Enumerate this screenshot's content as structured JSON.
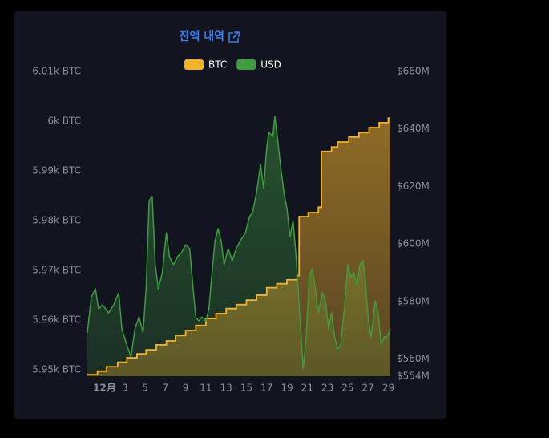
{
  "chart_data": {
    "type": "dual-area",
    "title": "잔액 내역",
    "xlim": [
      -0.7,
      29.2
    ],
    "xticks": [
      {
        "value": 1,
        "label": "12月"
      },
      3,
      5,
      7,
      9,
      11,
      13,
      15,
      17,
      19,
      21,
      23,
      25,
      27,
      29
    ],
    "ylim": [
      5948.7,
      6010
    ],
    "yticks": [
      {
        "value": 5950,
        "label": "5.95k BTC"
      },
      {
        "value": 5960,
        "label": "5.96k BTC"
      },
      {
        "value": 5970,
        "label": "5.97k BTC"
      },
      {
        "value": 5980,
        "label": "5.98k BTC"
      },
      {
        "value": 5990,
        "label": "5.99k BTC"
      },
      {
        "value": 6000,
        "label": "6k BTC"
      },
      {
        "value": 6010,
        "label": "6.01k BTC"
      }
    ],
    "y2lim": [
      554,
      660
    ],
    "y2ticks": [
      {
        "value": 554,
        "label": "$554M"
      },
      {
        "value": 560,
        "label": "$560M"
      },
      {
        "value": 580,
        "label": "$580M"
      },
      {
        "value": 600,
        "label": "$600M"
      },
      {
        "value": 620,
        "label": "$620M"
      },
      {
        "value": 640,
        "label": "$640M"
      },
      {
        "value": 660,
        "label": "$660M"
      }
    ],
    "series": [
      {
        "name": "BTC",
        "color": "#f5b32a",
        "step": true,
        "x": [
          -0.7,
          0.3,
          1.2,
          2.3,
          3.2,
          4.2,
          5.1,
          6.1,
          7.1,
          8.0,
          9.0,
          10.0,
          11.0,
          12.0,
          13.0,
          14.0,
          15.0,
          16.0,
          17.0,
          18.0,
          19.0,
          20.0,
          20.2,
          21.1,
          22.1,
          22.4,
          23.4,
          24.0,
          25.1,
          26.1,
          27.1,
          28.1,
          29.0
        ],
        "values": [
          5949.0,
          5949.7,
          5950.6,
          5951.5,
          5952.4,
          5953.2,
          5954.0,
          5955.0,
          5955.8,
          5956.9,
          5957.9,
          5958.9,
          5960.3,
          5961.3,
          5962.3,
          5963.1,
          5964.0,
          5965.0,
          5966.5,
          5967.3,
          5968.1,
          5968.9,
          5980.8,
          5981.6,
          5982.7,
          5993.9,
          5994.8,
          5995.8,
          5996.8,
          5997.7,
          5998.7,
          5999.7,
          6000.6
        ]
      },
      {
        "name": "USD",
        "color": "#3f9c3f",
        "axis": "y2",
        "x": [
          -0.7,
          -0.3,
          0.1,
          0.4,
          0.8,
          1.4,
          1.9,
          2.4,
          2.7,
          3.2,
          3.6,
          4.0,
          4.4,
          4.8,
          5.1,
          5.4,
          5.7,
          6.0,
          6.3,
          6.7,
          7.1,
          7.4,
          7.8,
          8.2,
          8.6,
          9.0,
          9.4,
          9.7,
          10.0,
          10.3,
          10.6,
          11.0,
          11.3,
          11.6,
          11.9,
          12.2,
          12.5,
          12.8,
          13.2,
          13.6,
          14.0,
          14.4,
          14.9,
          15.3,
          15.6,
          16.0,
          16.4,
          16.7,
          17.0,
          17.2,
          17.6,
          17.8,
          18.0,
          18.4,
          18.7,
          19.0,
          19.3,
          19.6,
          19.9,
          20.2,
          20.6,
          20.9,
          21.2,
          21.5,
          21.8,
          22.1,
          22.5,
          22.8,
          23.1,
          23.4,
          23.7,
          24.0,
          24.3,
          24.7,
          25.0,
          25.3,
          25.6,
          25.9,
          26.2,
          26.5,
          26.7,
          27.0,
          27.3,
          27.7,
          28.0,
          28.3,
          28.6,
          28.9,
          29.2
        ],
        "values": [
          569.1,
          581.6,
          584.4,
          577.4,
          578.8,
          576.0,
          578.8,
          583.0,
          570.5,
          564.9,
          560.7,
          570.5,
          574.6,
          569.1,
          584.4,
          615.1,
          616.5,
          592.8,
          584.4,
          590.0,
          603.9,
          595.6,
          592.8,
          595.6,
          597.0,
          599.7,
          598.4,
          585.8,
          574.6,
          573.2,
          574.6,
          573.2,
          577.4,
          590.0,
          601.1,
          605.3,
          601.1,
          592.8,
          598.4,
          594.2,
          598.4,
          601.1,
          603.9,
          609.5,
          610.9,
          617.9,
          627.6,
          619.3,
          633.2,
          638.8,
          637.4,
          644.4,
          638.8,
          626.2,
          617.9,
          612.3,
          602.5,
          608.1,
          595.6,
          578.8,
          556.5,
          567.7,
          588.6,
          591.4,
          584.4,
          576.0,
          583.0,
          580.2,
          570.5,
          576.0,
          567.7,
          563.5,
          564.9,
          578.8,
          592.8,
          588.6,
          590.0,
          585.8,
          592.8,
          594.2,
          588.6,
          574.6,
          567.7,
          580.2,
          576.0,
          564.9,
          567.7,
          567.7,
          570.5
        ]
      }
    ]
  }
}
